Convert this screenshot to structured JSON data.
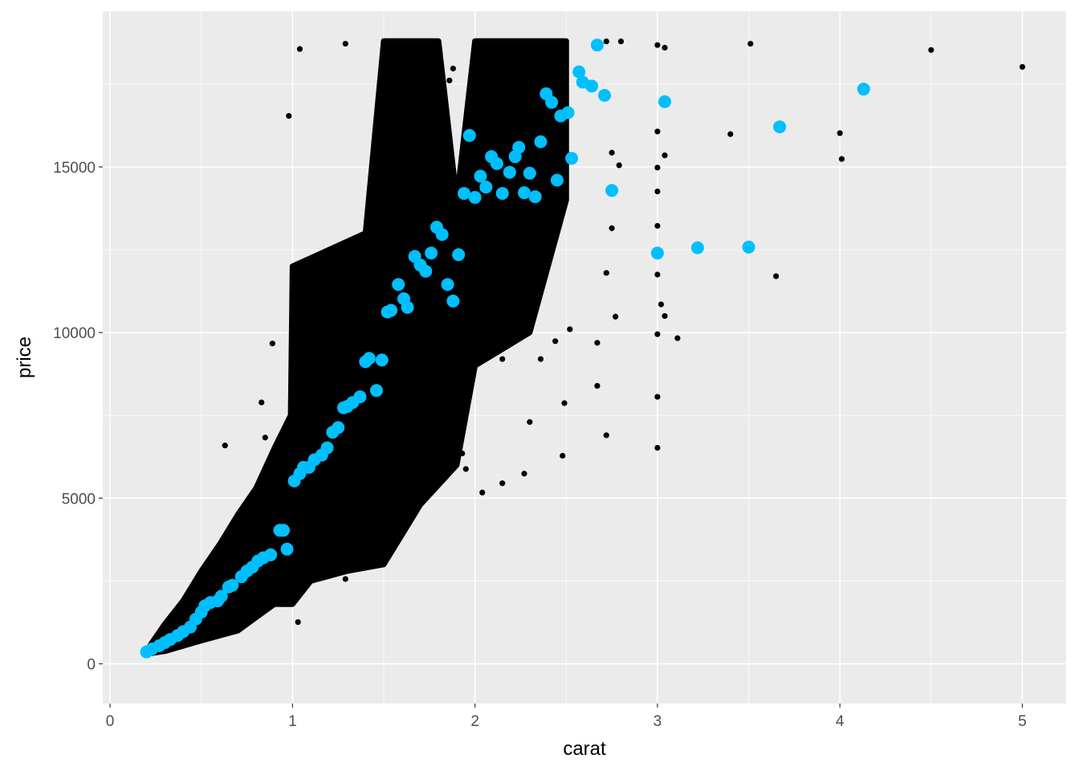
{
  "chart_data": {
    "type": "scatter",
    "title": "",
    "xlabel": "carat",
    "ylabel": "price",
    "xlim": [
      -0.04,
      5.24
    ],
    "ylim": [
      -1200,
      19700
    ],
    "x_ticks": [
      "0",
      "1",
      "2",
      "3",
      "4",
      "5"
    ],
    "y_ticks": [
      "0",
      "5000",
      "10000",
      "15000"
    ],
    "x_tick_values": [
      0,
      1,
      2,
      3,
      4,
      5
    ],
    "y_tick_values": [
      0,
      5000,
      10000,
      15000
    ],
    "grid": true,
    "panel_background": "#EBEBEB",
    "legend": "none",
    "series": [
      {
        "color": "#000000",
        "dense_region_outline": [
          [
            0.2,
            400
          ],
          [
            0.3,
            1200
          ],
          [
            0.4,
            1900
          ],
          [
            0.5,
            2800
          ],
          [
            0.6,
            3600
          ],
          [
            0.7,
            4500
          ],
          [
            0.8,
            5300
          ],
          [
            0.9,
            6500
          ],
          [
            0.99,
            7500
          ],
          [
            1.0,
            12000
          ],
          [
            1.2,
            12500
          ],
          [
            1.4,
            13000
          ],
          [
            1.5,
            18800
          ],
          [
            1.8,
            18800
          ],
          [
            1.9,
            14000
          ],
          [
            2.0,
            18800
          ],
          [
            2.5,
            18800
          ],
          [
            2.5,
            14000
          ],
          [
            2.3,
            10000
          ],
          [
            2.0,
            9000
          ],
          [
            1.9,
            6000
          ],
          [
            1.7,
            4800
          ],
          [
            1.5,
            3000
          ],
          [
            1.3,
            2800
          ],
          [
            1.1,
            2500
          ],
          [
            1.0,
            1800
          ],
          [
            0.9,
            1800
          ],
          [
            0.7,
            1000
          ],
          [
            0.5,
            700
          ],
          [
            0.3,
            380
          ],
          [
            0.2,
            300
          ]
        ],
        "points": [
          [
            5.0,
            18020
          ],
          [
            4.5,
            18530
          ],
          [
            3.51,
            18720
          ],
          [
            4.0,
            16020
          ],
          [
            4.01,
            15240
          ],
          [
            3.4,
            15990
          ],
          [
            3.65,
            11700
          ],
          [
            3.11,
            9830
          ],
          [
            3.0,
            6520
          ],
          [
            3.0,
            8060
          ],
          [
            3.0,
            9950
          ],
          [
            3.0,
            11750
          ],
          [
            3.0,
            13220
          ],
          [
            3.0,
            14260
          ],
          [
            3.0,
            14980
          ],
          [
            3.0,
            18680
          ],
          [
            3.04,
            18600
          ],
          [
            3.04,
            15350
          ],
          [
            3.0,
            16070
          ],
          [
            3.02,
            10850
          ],
          [
            3.04,
            10500
          ],
          [
            2.72,
            11800
          ],
          [
            2.77,
            10480
          ],
          [
            2.72,
            18790
          ],
          [
            2.8,
            18790
          ],
          [
            2.48,
            6280
          ],
          [
            2.72,
            6900
          ],
          [
            2.67,
            8390
          ],
          [
            2.67,
            9690
          ],
          [
            2.49,
            7870
          ],
          [
            2.52,
            10100
          ],
          [
            2.44,
            9740
          ],
          [
            2.75,
            15430
          ],
          [
            2.75,
            13150
          ],
          [
            2.79,
            15050
          ],
          [
            2.15,
            5450
          ],
          [
            2.27,
            5740
          ],
          [
            2.3,
            7300
          ],
          [
            2.36,
            9200
          ],
          [
            2.15,
            9200
          ],
          [
            2.04,
            5170
          ],
          [
            1.95,
            5880
          ],
          [
            1.93,
            6350
          ],
          [
            1.63,
            4740
          ],
          [
            1.59,
            5400
          ],
          [
            1.5,
            3030
          ],
          [
            1.37,
            3980
          ],
          [
            1.29,
            2560
          ],
          [
            1.03,
            1260
          ],
          [
            0.89,
            9670
          ],
          [
            0.85,
            6830
          ],
          [
            0.83,
            7890
          ],
          [
            0.63,
            6590
          ],
          [
            0.98,
            16540
          ],
          [
            1.04,
            18560
          ],
          [
            1.29,
            18720
          ],
          [
            1.86,
            17610
          ],
          [
            1.88,
            17970
          ],
          [
            1.78,
            18680
          ]
        ]
      },
      {
        "color": "#00BFFF",
        "points": [
          [
            0.2,
            360
          ],
          [
            0.23,
            450
          ],
          [
            0.27,
            545
          ],
          [
            0.3,
            640
          ],
          [
            0.33,
            735
          ],
          [
            0.37,
            853
          ],
          [
            0.4,
            970
          ],
          [
            0.44,
            1110
          ],
          [
            0.47,
            1350
          ],
          [
            0.5,
            1560
          ],
          [
            0.52,
            1750
          ],
          [
            0.55,
            1850
          ],
          [
            0.59,
            1900
          ],
          [
            0.61,
            2040
          ],
          [
            0.65,
            2320
          ],
          [
            0.67,
            2370
          ],
          [
            0.72,
            2630
          ],
          [
            0.75,
            2800
          ],
          [
            0.78,
            2920
          ],
          [
            0.81,
            3100
          ],
          [
            0.84,
            3200
          ],
          [
            0.88,
            3290
          ],
          [
            0.93,
            4030
          ],
          [
            0.95,
            4030
          ],
          [
            0.97,
            3460
          ],
          [
            1.01,
            5520
          ],
          [
            1.04,
            5740
          ],
          [
            1.06,
            5930
          ],
          [
            1.09,
            5930
          ],
          [
            1.12,
            6160
          ],
          [
            1.16,
            6300
          ],
          [
            1.19,
            6520
          ],
          [
            1.22,
            6990
          ],
          [
            1.25,
            7130
          ],
          [
            1.28,
            7730
          ],
          [
            1.3,
            7770
          ],
          [
            1.33,
            7890
          ],
          [
            1.37,
            8060
          ],
          [
            1.4,
            9120
          ],
          [
            1.42,
            9220
          ],
          [
            1.46,
            8250
          ],
          [
            1.49,
            9170
          ],
          [
            1.52,
            10620
          ],
          [
            1.54,
            10670
          ],
          [
            1.58,
            11450
          ],
          [
            1.61,
            11020
          ],
          [
            1.63,
            10760
          ],
          [
            1.67,
            12300
          ],
          [
            1.7,
            12040
          ],
          [
            1.73,
            11850
          ],
          [
            1.76,
            12400
          ],
          [
            1.79,
            13180
          ],
          [
            1.82,
            12960
          ],
          [
            1.85,
            11450
          ],
          [
            1.88,
            10950
          ],
          [
            1.91,
            12350
          ],
          [
            1.94,
            14200
          ],
          [
            1.97,
            15950
          ],
          [
            2.0,
            14080
          ],
          [
            2.03,
            14720
          ],
          [
            2.06,
            14390
          ],
          [
            2.09,
            15310
          ],
          [
            2.12,
            15100
          ],
          [
            2.15,
            14200
          ],
          [
            2.19,
            14840
          ],
          [
            2.22,
            15310
          ],
          [
            2.24,
            15590
          ],
          [
            2.27,
            14220
          ],
          [
            2.3,
            14810
          ],
          [
            2.33,
            14100
          ],
          [
            2.36,
            15760
          ],
          [
            2.39,
            17210
          ],
          [
            2.42,
            16950
          ],
          [
            2.45,
            14600
          ],
          [
            2.47,
            16540
          ],
          [
            2.51,
            16640
          ],
          [
            2.53,
            15260
          ],
          [
            2.57,
            17870
          ],
          [
            2.59,
            17560
          ],
          [
            2.64,
            17440
          ],
          [
            2.67,
            18680
          ],
          [
            2.71,
            17160
          ],
          [
            2.75,
            14290
          ],
          [
            3.0,
            12400
          ],
          [
            3.04,
            16970
          ],
          [
            3.22,
            12560
          ],
          [
            3.5,
            12580
          ],
          [
            3.67,
            16210
          ],
          [
            4.13,
            17350
          ]
        ]
      }
    ]
  }
}
